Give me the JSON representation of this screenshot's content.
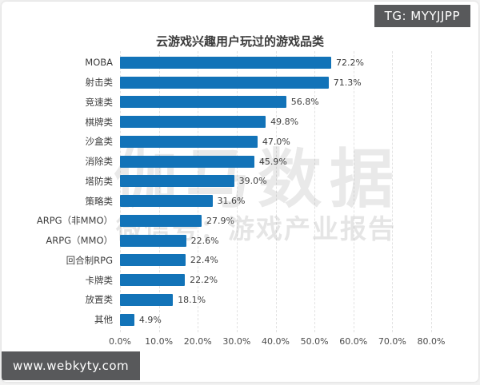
{
  "badges": {
    "telegram_tag": "TG: MYYJJPP",
    "website": "www.webkyty.com"
  },
  "watermark": {
    "line1": "伽马数据",
    "line2": "微信号：游戏产业报告"
  },
  "chart_data": {
    "type": "bar",
    "orientation": "horizontal",
    "title": "云游戏兴趣用户玩过的游戏品类",
    "categories": [
      "MOBA",
      "射击类",
      "竞速类",
      "棋牌类",
      "沙盒类",
      "消除类",
      "塔防类",
      "策略类",
      "ARPG（非MMO）",
      "ARPG（MMO）",
      "回合制RPG",
      "卡牌类",
      "放置类",
      "其他"
    ],
    "values": [
      72.2,
      71.3,
      56.8,
      49.8,
      47.0,
      45.9,
      39.0,
      31.6,
      27.9,
      22.6,
      22.4,
      22.2,
      18.1,
      4.9
    ],
    "value_labels": [
      "72.2%",
      "71.3%",
      "56.8%",
      "49.8%",
      "47.0%",
      "45.9%",
      "39.0%",
      "31.6%",
      "27.9%",
      "22.6%",
      "22.4%",
      "22.2%",
      "18.1%",
      "4.9%"
    ],
    "x_ticks": [
      "0.0%",
      "10.0%",
      "20.0%",
      "30.0%",
      "40.0%",
      "50.0%",
      "60.0%",
      "70.0%",
      "80.0%"
    ],
    "xlim": [
      0,
      80
    ],
    "bar_color": "#1273b8",
    "grid": true,
    "legend": false,
    "xlabel": "",
    "ylabel": ""
  }
}
